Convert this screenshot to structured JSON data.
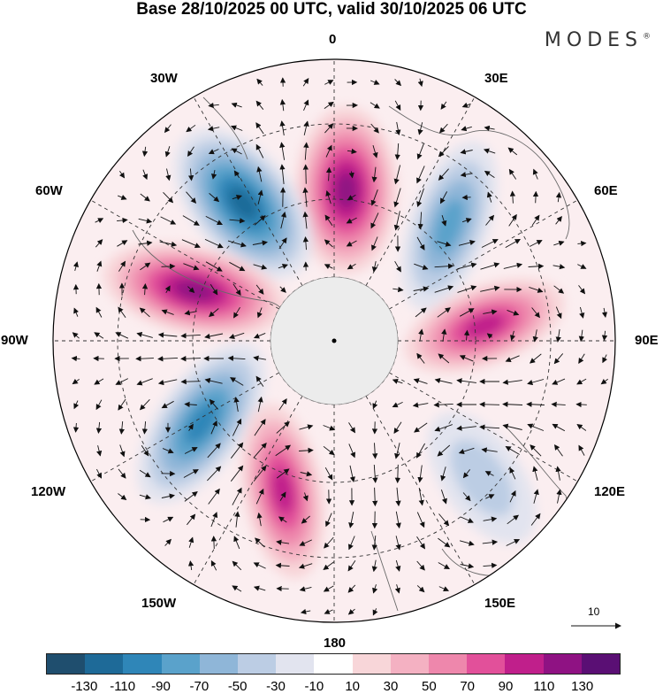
{
  "title": "Base 28/10/2025 00 UTC, valid 30/10/2025 06 UTC",
  "brand": {
    "name": "MODES",
    "mark": "®"
  },
  "map": {
    "projection": "north-polar-stereographic",
    "longitude_labels": {
      "lon_0": "0",
      "lon_30e": "30E",
      "lon_60e": "60E",
      "lon_90e": "90E",
      "lon_120e": "120E",
      "lon_150e": "150E",
      "lon_180": "180",
      "lon_150w": "150W",
      "lon_120w": "120W",
      "lon_90w": "90W",
      "lon_60w": "60W",
      "lon_30w": "30W"
    },
    "vector_reference": {
      "value": "10"
    },
    "anomaly_centers": [
      {
        "label": "positive",
        "value": 130,
        "longitude": "0"
      },
      {
        "label": "negative",
        "value": -130,
        "longitude": "35W"
      },
      {
        "label": "negative",
        "value": -90,
        "longitude": "40E"
      },
      {
        "label": "positive",
        "value": 120,
        "longitude": "75W"
      },
      {
        "label": "positive",
        "value": 110,
        "longitude": "90E"
      },
      {
        "label": "negative",
        "value": -110,
        "longitude": "125W"
      },
      {
        "label": "positive",
        "value": 110,
        "longitude": "160W"
      },
      {
        "label": "negative",
        "value": -50,
        "longitude": "130E"
      }
    ]
  },
  "colorbar": {
    "colors": [
      "#1f4e6e",
      "#1e6a98",
      "#2f86b8",
      "#5aa2cb",
      "#8fb6d8",
      "#bccde4",
      "#e2e4ef",
      "#ffffff",
      "#f8d6d9",
      "#f4b1c2",
      "#ee87ac",
      "#e2509a",
      "#c01f8b",
      "#8f1283",
      "#5a0f74"
    ],
    "ticks": [
      "-130",
      "-110",
      "-90",
      "-70",
      "-50",
      "-30",
      "-10",
      "10",
      "30",
      "50",
      "70",
      "90",
      "110",
      "130"
    ]
  }
}
